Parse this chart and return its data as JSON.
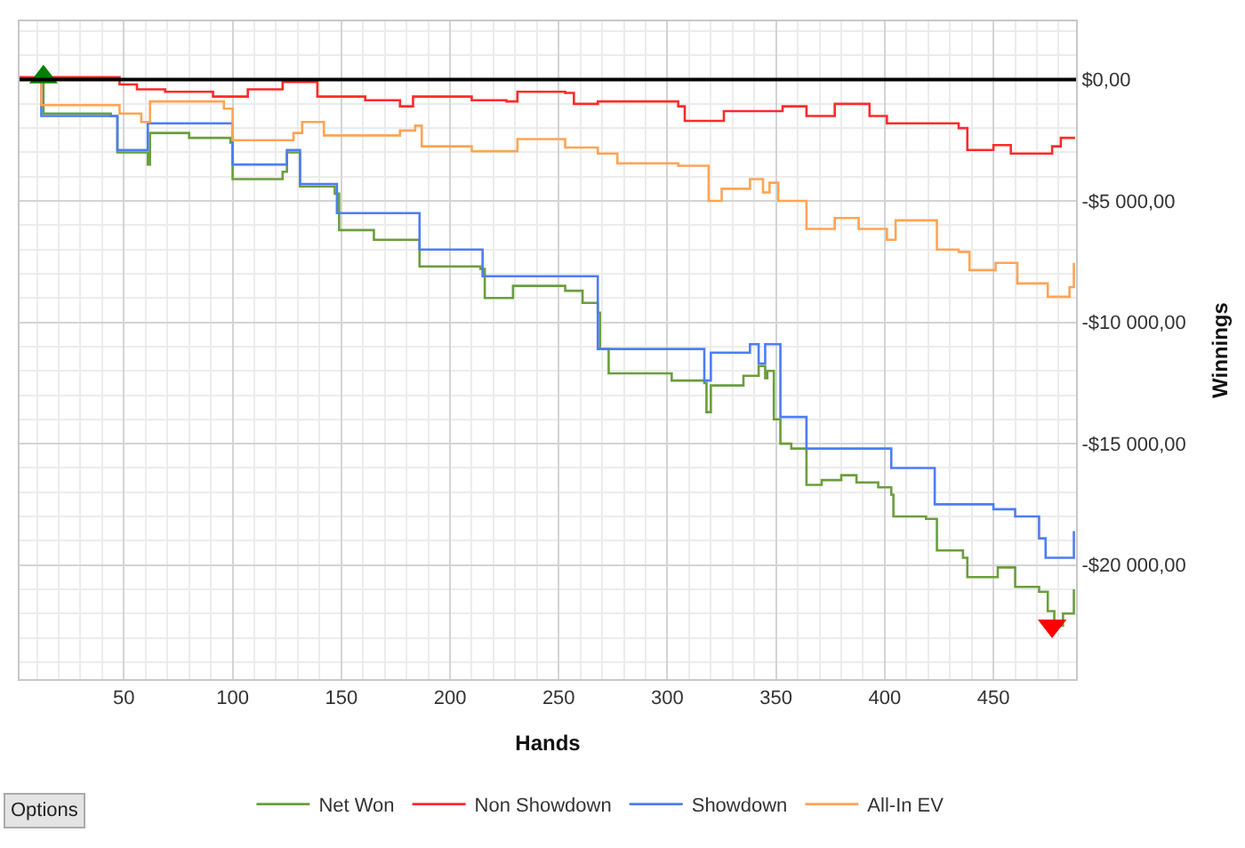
{
  "chart_data": {
    "type": "step",
    "xlabel": "Hands",
    "ylabel": "Winnings",
    "xlim": [
      2,
      488
    ],
    "xticks": [
      50,
      100,
      150,
      200,
      250,
      300,
      350,
      400,
      450
    ],
    "ylim": [
      -24700,
      2400
    ],
    "yticks": [
      {
        "value": 0,
        "label": "$0,00"
      },
      {
        "value": -5000,
        "label": "-$5 000,00"
      },
      {
        "value": -10000,
        "label": "-$10 000,00"
      },
      {
        "value": -15000,
        "label": "-$15 000,00"
      },
      {
        "value": -20000,
        "label": "-$20 000,00"
      }
    ],
    "grid": true,
    "legend": "bottom",
    "ref_lines": [
      {
        "axis": "y",
        "value": 0,
        "color": "#000000"
      }
    ],
    "annotations": [
      "Options"
    ],
    "series": [
      {
        "name": "Net Won",
        "color": "#6a9e3c",
        "x": [
          2,
          12,
          13,
          44,
          47,
          61,
          62,
          80,
          99,
          100,
          123,
          125,
          127,
          131,
          147,
          149,
          165,
          178,
          186,
          214,
          216,
          229,
          253,
          261,
          268,
          269,
          273,
          302,
          317,
          318,
          320,
          335,
          342,
          345,
          346,
          349,
          352,
          357,
          364,
          371,
          380,
          387,
          397,
          403,
          404,
          419,
          424,
          436,
          438,
          452,
          460,
          471,
          475,
          478,
          482,
          486,
          487
        ],
        "values": [
          0,
          100,
          -1400,
          -1500,
          -3000,
          -3500,
          -2200,
          -2400,
          -2600,
          -4100,
          -3800,
          -3000,
          -3000,
          -4400,
          -4700,
          -6200,
          -6600,
          -6600,
          -7700,
          -7800,
          -9000,
          -8500,
          -8700,
          -9200,
          -9600,
          -11100,
          -12100,
          -12400,
          -12500,
          -13700,
          -12600,
          -12200,
          -11800,
          -12300,
          -12000,
          -14000,
          -15000,
          -15200,
          -16700,
          -16500,
          -16300,
          -16600,
          -16800,
          -17100,
          -18000,
          -18100,
          -19400,
          -19700,
          -20500,
          -20100,
          -20900,
          -21100,
          -21900,
          -22500,
          -22000,
          -22000,
          -21000
        ]
      },
      {
        "name": "Non Showdown",
        "color": "#ff2a2a",
        "x": [
          2,
          35,
          48,
          56,
          69,
          91,
          107,
          123,
          139,
          161,
          177,
          183,
          210,
          226,
          231,
          253,
          257,
          268,
          305,
          308,
          326,
          353,
          364,
          377,
          384,
          393,
          401,
          434,
          438,
          450,
          458,
          477,
          481,
          487
        ],
        "values": [
          100,
          100,
          -200,
          -400,
          -500,
          -700,
          -400,
          -100,
          -700,
          -850,
          -1100,
          -700,
          -850,
          -900,
          -500,
          -550,
          -1000,
          -900,
          -1100,
          -1700,
          -1300,
          -1100,
          -1500,
          -1000,
          -1000,
          -1500,
          -1800,
          -2000,
          -2900,
          -2700,
          -3050,
          -2750,
          -2400,
          -2450
        ]
      },
      {
        "name": "Showdown",
        "color": "#4d7cf5",
        "x": [
          2,
          12,
          47,
          61,
          100,
          125,
          131,
          148,
          186,
          215,
          268,
          317,
          320,
          336,
          338,
          342,
          345,
          352,
          364,
          403,
          423,
          450,
          460,
          471,
          474,
          485,
          487
        ],
        "values": [
          0,
          -1500,
          -2900,
          -1800,
          -3500,
          -2900,
          -4300,
          -5500,
          -7000,
          -8100,
          -11100,
          -12400,
          -11250,
          -11250,
          -10900,
          -11700,
          -10900,
          -13900,
          -15200,
          -16000,
          -17500,
          -17700,
          -18000,
          -18900,
          -19700,
          -19700,
          -18600
        ]
      },
      {
        "name": "All-In EV",
        "color": "#ffa455",
        "x": [
          2,
          12,
          38,
          48,
          58,
          62,
          96,
          100,
          128,
          132,
          142,
          177,
          184,
          187,
          210,
          231,
          253,
          268,
          277,
          305,
          319,
          325,
          338,
          344,
          347,
          351,
          364,
          377,
          388,
          401,
          405,
          423,
          424,
          434,
          439,
          451,
          461,
          475,
          485,
          487
        ],
        "values": [
          0,
          -1050,
          -1050,
          -1400,
          -1750,
          -900,
          -1200,
          -2500,
          -2200,
          -1750,
          -2300,
          -2100,
          -1900,
          -2750,
          -2950,
          -2450,
          -2800,
          -3050,
          -3450,
          -3550,
          -5000,
          -4500,
          -4100,
          -4650,
          -4250,
          -5000,
          -6150,
          -5700,
          -6150,
          -6600,
          -5800,
          -5800,
          -7000,
          -7100,
          -7850,
          -7550,
          -8400,
          -8950,
          -8550,
          -7550
        ]
      },
      {
        "type": "scatter",
        "marker": "triangle",
        "color": "#008000",
        "x": [
          13
        ],
        "values": [
          100
        ]
      },
      {
        "type": "scatter",
        "marker": "triangle",
        "color": "#ff0000",
        "x": [
          477
        ],
        "values": [
          -22500
        ]
      }
    ]
  }
}
